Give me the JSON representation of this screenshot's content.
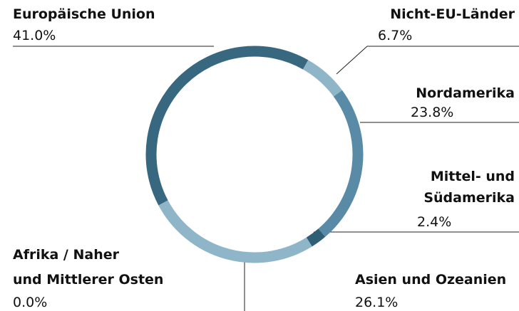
{
  "chart_data": {
    "type": "donut",
    "categories": [
      [
        "Europäische Union"
      ],
      [
        "Nicht-EU-Länder"
      ],
      [
        "Nordamerika"
      ],
      [
        "Mittel- und",
        "Südamerika"
      ],
      [
        "Asien und Ozeanien"
      ],
      [
        "Afrika / Naher",
        "und Mittlerer Osten"
      ]
    ],
    "values": [
      41.0,
      6.7,
      23.8,
      2.4,
      26.1,
      0.0
    ],
    "value_labels": [
      "41.0%",
      "6.7%",
      "23.8%",
      "2.4%",
      "26.1%",
      "0.0%"
    ],
    "colors": [
      "#386880",
      "#8fb6c8",
      "#5a8ba6",
      "#2f5f75",
      "#8fb6c8",
      "#8fb6c8"
    ]
  }
}
